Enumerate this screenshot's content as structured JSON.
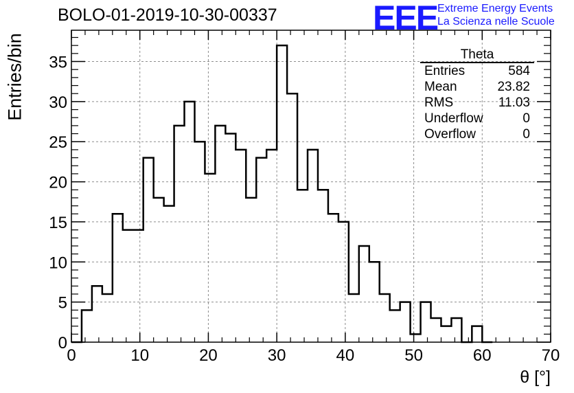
{
  "header": {
    "title": "BOLO-01-2019-10-30-00337",
    "logo_letters": "EEE",
    "logo_line1": "Extreme Energy Events",
    "logo_line2": "La Scienza nelle Scuole"
  },
  "colors": {
    "logo": "#1a1aff",
    "line": "#000000",
    "grid": "#8c8c8c"
  },
  "stats": {
    "name": "Theta",
    "rows": [
      {
        "label": "Entries",
        "value": "584"
      },
      {
        "label": "Mean",
        "value": "23.82"
      },
      {
        "label": "RMS",
        "value": "11.03"
      },
      {
        "label": "Underflow",
        "value": "0"
      },
      {
        "label": "Overflow",
        "value": "0"
      }
    ]
  },
  "chart_data": {
    "type": "histogram",
    "title": "BOLO-01-2019-10-30-00337",
    "xlabel": "θ [°]",
    "ylabel": "Entries/bin",
    "xlim": [
      0,
      70
    ],
    "ylim": [
      0,
      38.9
    ],
    "xticks": [
      0,
      10,
      20,
      30,
      40,
      50,
      60,
      70
    ],
    "yticks": [
      0,
      5,
      10,
      15,
      20,
      25,
      30,
      35
    ],
    "bin_width": 1.5,
    "bin_edges_start": 0,
    "counts": [
      0,
      4,
      7,
      6,
      16,
      14,
      14,
      23,
      18,
      17,
      27,
      30,
      25,
      21,
      27,
      26,
      24,
      18,
      23,
      24,
      37,
      31,
      19,
      24,
      19,
      16,
      15,
      6,
      12,
      10,
      6,
      4,
      5,
      1,
      5,
      3,
      2,
      3,
      0,
      2,
      0
    ],
    "grid": true,
    "line_color": "#000000"
  }
}
